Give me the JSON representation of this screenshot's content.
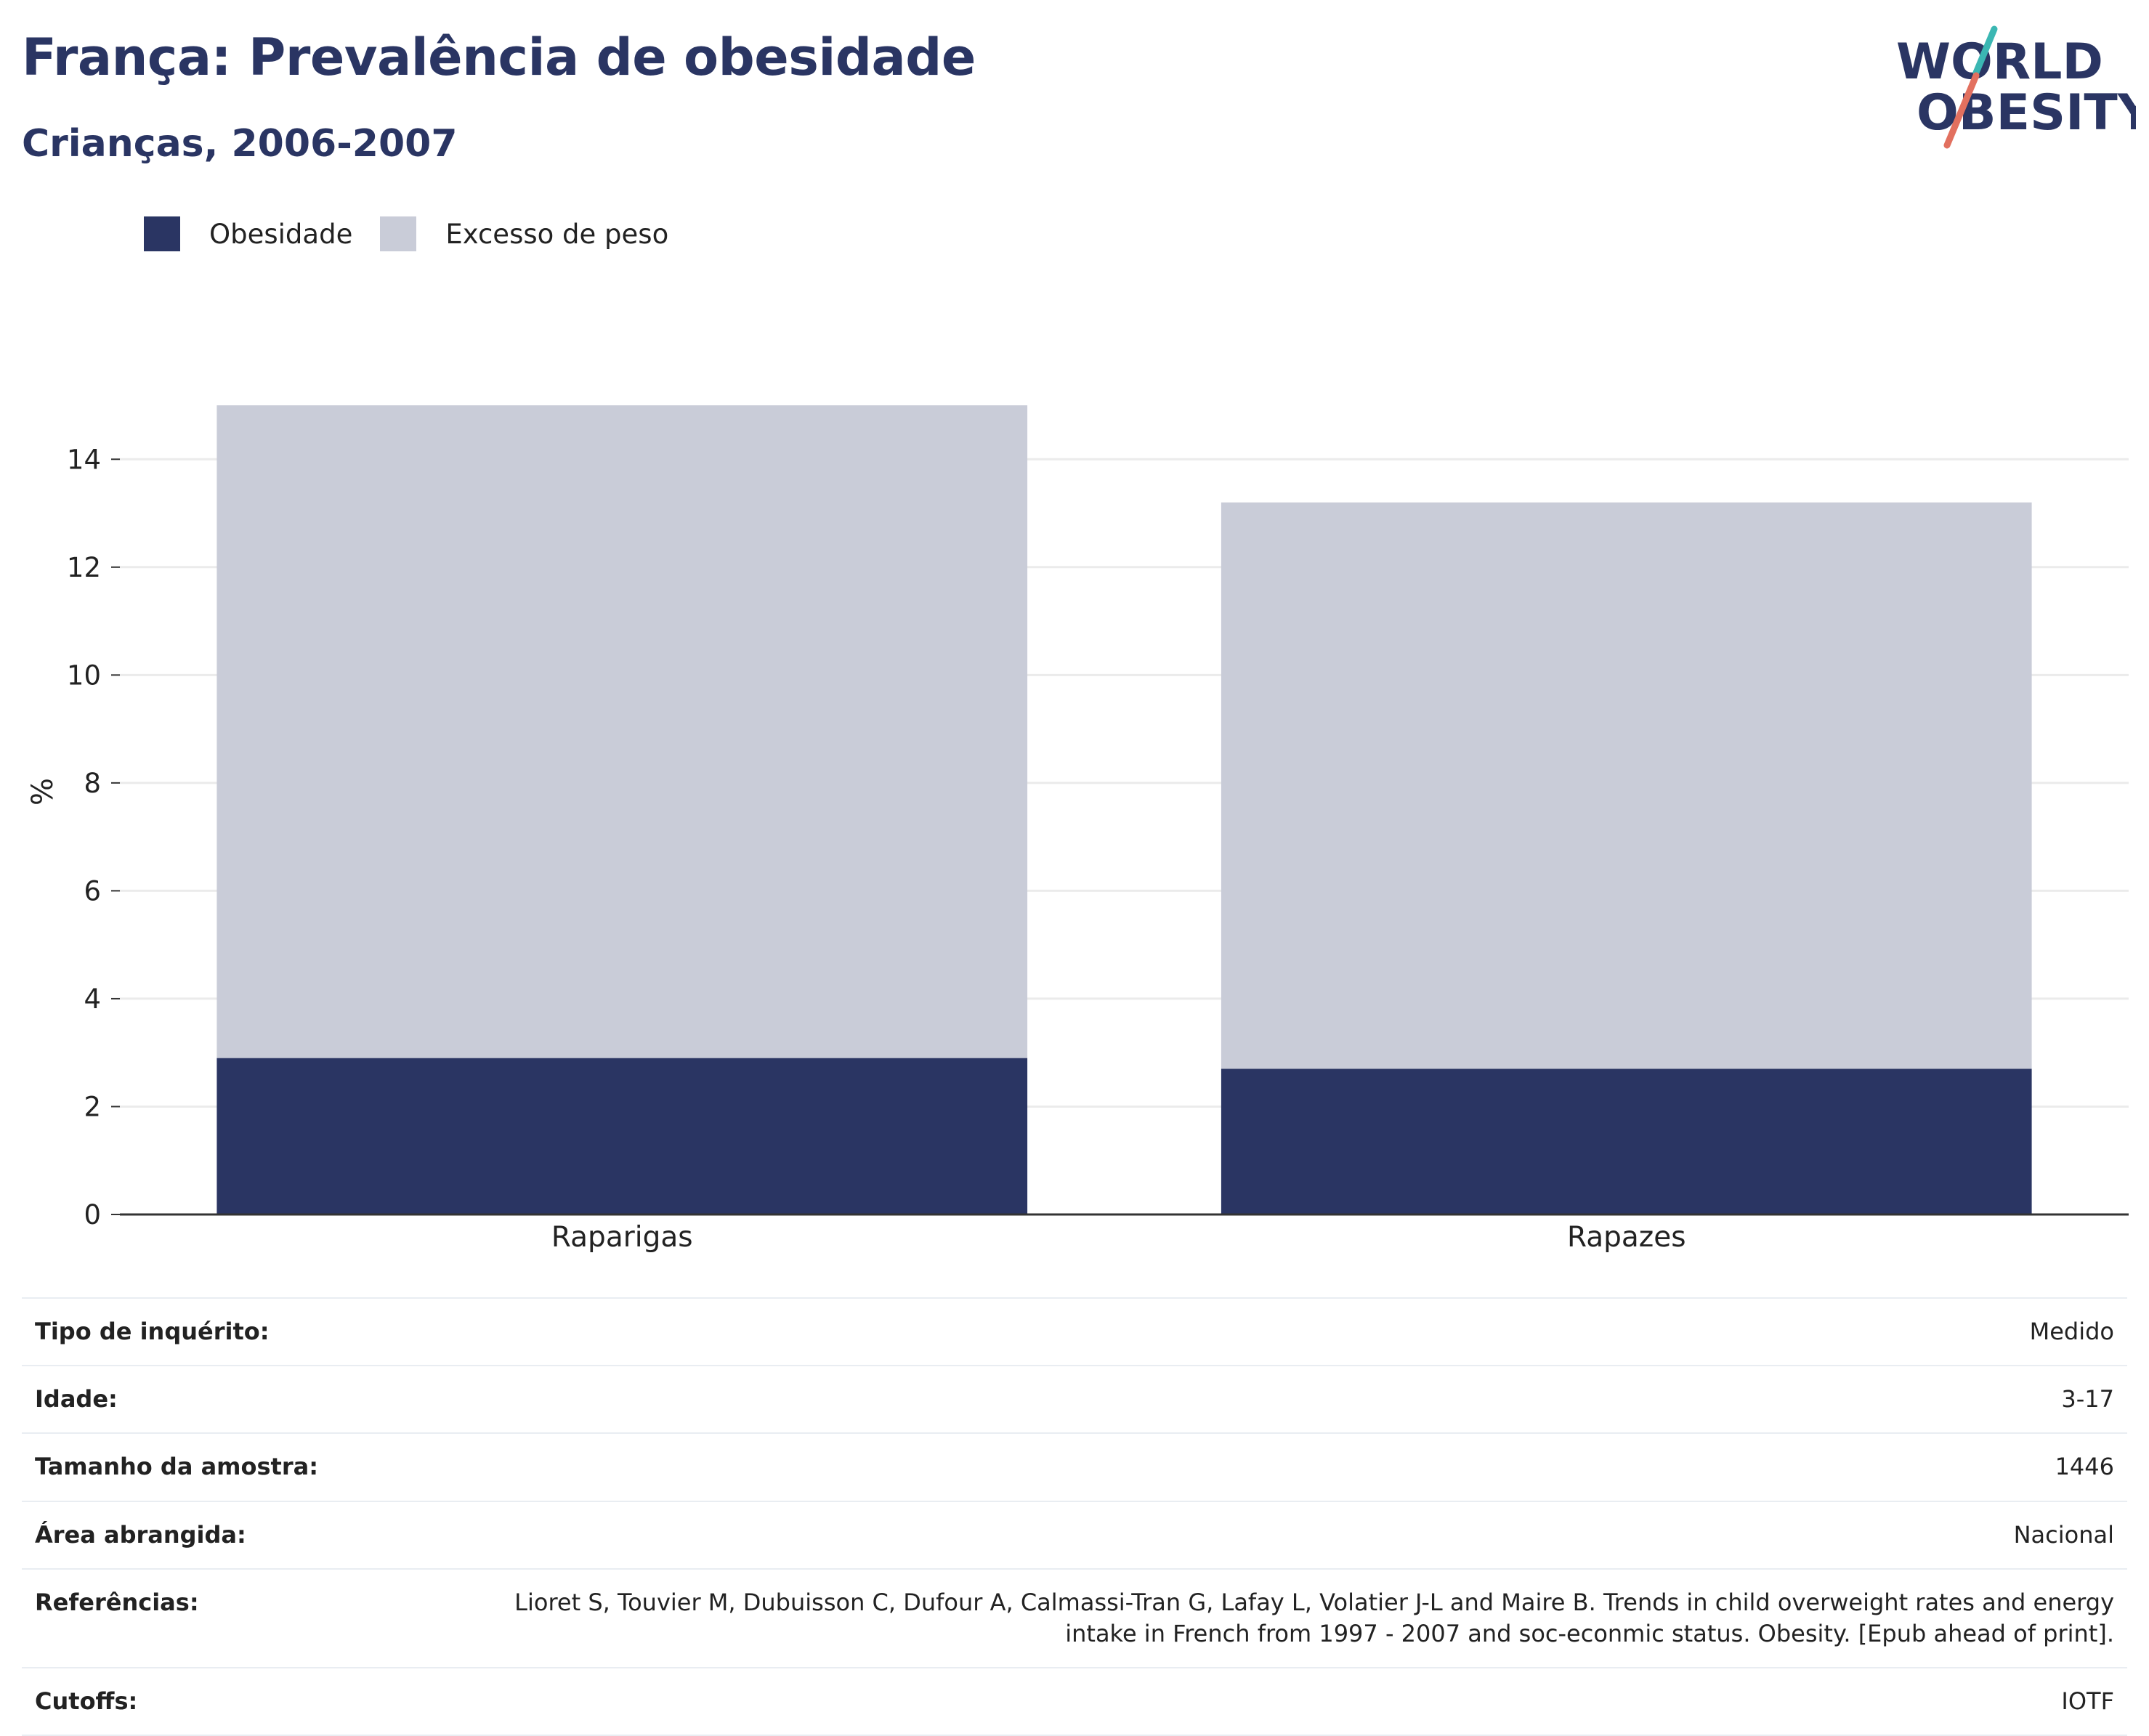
{
  "header": {
    "title": "França: Prevalência de obesidade",
    "subtitle": "Crianças, 2006-2007"
  },
  "logo": {
    "line1": "WORLD",
    "line2": "OBESITY",
    "accent_colors": [
      "#3bb7b3",
      "#e2705f"
    ],
    "text_color": "#2a3563"
  },
  "legend": [
    {
      "label": "Obesidade",
      "color": "#2a3563"
    },
    {
      "label": "Excesso de peso",
      "color": "#c9ccd8"
    }
  ],
  "chart_data": {
    "type": "bar",
    "stacked": true,
    "categories": [
      "Raparigas",
      "Rapazes"
    ],
    "series": [
      {
        "name": "Obesidade",
        "values": [
          2.9,
          2.7
        ],
        "color": "#2a3563"
      },
      {
        "name": "Excesso de peso",
        "values": [
          12.1,
          10.5
        ],
        "color": "#c9ccd8"
      }
    ],
    "ylabel": "%",
    "ylim": [
      0,
      15
    ],
    "yticks": [
      0,
      2,
      4,
      6,
      8,
      10,
      12,
      14
    ],
    "grid": true,
    "legend_position": "top-left"
  },
  "info": [
    {
      "label": "Tipo de inquérito:",
      "value": "Medido"
    },
    {
      "label": "Idade:",
      "value": "3-17"
    },
    {
      "label": "Tamanho da amostra:",
      "value": "1446"
    },
    {
      "label": "Área abrangida:",
      "value": "Nacional"
    },
    {
      "label": "Referências:",
      "value": "Lioret S, Touvier M, Dubuisson C, Dufour A, Calmassi-Tran G, Lafay L, Volatier J-L and Maire B. Trends in child overweight rates and energy intake in French from 1997 - 2007 and soc-econmic status. Obesity. [Epub ahead of print]."
    },
    {
      "label": "Cutoffs:",
      "value": "IOTF"
    }
  ]
}
